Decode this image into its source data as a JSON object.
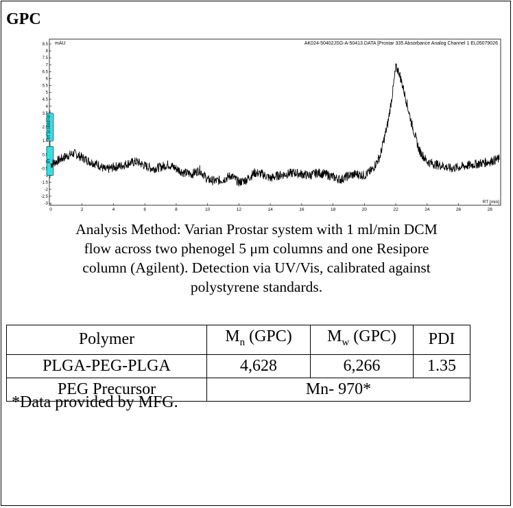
{
  "heading": "GPC",
  "chart_data": {
    "type": "line",
    "header_left": "mAU",
    "header_right": "AK024-50402JSG-A-50413.DATA [Prostar 335 Absorbance Analog Channel 1 EL05079026",
    "xlabel": "RT [min]",
    "xlim": [
      0,
      28.6
    ],
    "ylim": [
      -3,
      8.5
    ],
    "x_ticks": [
      "0",
      "2",
      "4",
      "6",
      "8",
      "10",
      "12",
      "14",
      "16",
      "18",
      "20",
      "22",
      "24",
      "26",
      "28"
    ],
    "y_ticks": [
      "-3",
      "-2.5",
      "-2",
      "-1.5",
      "-1",
      "-0.5",
      "0",
      "0.5",
      "1",
      "1.5",
      "2",
      "2.5",
      "3",
      "3.5",
      "4",
      "4.5",
      "5",
      "5.5",
      "6",
      "6.5",
      "7",
      "7.5",
      "8",
      "8.5"
    ],
    "y_tick_display": [
      "-3",
      "-2.5",
      "-2",
      "-1.5",
      "-1",
      "-0.5",
      "0",
      "0.5",
      "1",
      "1.5",
      "2",
      "2.5",
      "3",
      "3.5",
      "4",
      "4.5",
      "5",
      "5.5",
      "6",
      "6.5",
      "7",
      "7.5",
      "8",
      "8.5"
    ],
    "series": [
      {
        "color": "#000000",
        "points": [
          [
            0,
            -0.2
          ],
          [
            0.5,
            0.1
          ],
          [
            1,
            0.4
          ],
          [
            1.5,
            0.6
          ],
          [
            2,
            0.3
          ],
          [
            2.5,
            0.0
          ],
          [
            3,
            -0.2
          ],
          [
            3.5,
            -0.6
          ],
          [
            4,
            -0.4
          ],
          [
            4.5,
            -0.3
          ],
          [
            5,
            -0.1
          ],
          [
            5.5,
            0.0
          ],
          [
            6,
            -0.3
          ],
          [
            6.5,
            -0.5
          ],
          [
            7,
            -0.4
          ],
          [
            7.5,
            -0.2
          ],
          [
            8,
            -0.5
          ],
          [
            8.5,
            -0.8
          ],
          [
            9,
            -0.9
          ],
          [
            9.5,
            -0.6
          ],
          [
            10,
            -1.3
          ],
          [
            10.5,
            -1.4
          ],
          [
            11,
            -1.3
          ],
          [
            11.5,
            -1.0
          ],
          [
            12,
            -1.5
          ],
          [
            12.5,
            -1.3
          ],
          [
            13,
            -0.8
          ],
          [
            13.5,
            -0.9
          ],
          [
            14,
            -1.2
          ],
          [
            14.5,
            -1.0
          ],
          [
            15,
            -0.9
          ],
          [
            15.5,
            -0.8
          ],
          [
            16,
            -0.9
          ],
          [
            16.5,
            -1.0
          ],
          [
            17,
            -0.8
          ],
          [
            17.5,
            -0.9
          ],
          [
            18,
            -1.1
          ],
          [
            18.5,
            -1.3
          ],
          [
            19,
            -1.0
          ],
          [
            19.5,
            -0.9
          ],
          [
            20,
            -1.0
          ],
          [
            20.5,
            -0.6
          ],
          [
            21,
            0.4
          ],
          [
            21.5,
            2.8
          ],
          [
            21.8,
            5.0
          ],
          [
            22,
            6.8
          ],
          [
            22.2,
            6.5
          ],
          [
            22.5,
            5.2
          ],
          [
            23,
            2.8
          ],
          [
            23.5,
            0.8
          ],
          [
            24,
            0.0
          ],
          [
            24.5,
            -0.2
          ],
          [
            25,
            -0.3
          ],
          [
            25.5,
            -0.5
          ],
          [
            26,
            -0.4
          ],
          [
            26.5,
            -0.3
          ],
          [
            27,
            -0.2
          ],
          [
            27.5,
            -0.1
          ],
          [
            28,
            0.0
          ],
          [
            28.6,
            0.2
          ]
        ]
      }
    ],
    "markers": [
      {
        "name": "integration-marker-upper",
        "label": "RT 10.00000 00",
        "y_from": 1.5,
        "y_to": 3.5,
        "color": "#33dfe5"
      },
      {
        "name": "integration-marker-lower",
        "label": "RT",
        "y_from": -1.0,
        "y_to": 1.1,
        "color": "#33dfe5"
      }
    ]
  },
  "caption_lines": [
    "Analysis Method: Varian Prostar system with 1 ml/min DCM",
    "flow across two phenogel 5 μm columns and one Resipore",
    "column (Agilent). Detection via UV/Vis, calibrated against",
    "polystyrene standards."
  ],
  "table": {
    "header": {
      "polymer": "Polymer",
      "mn_main": "M",
      "mn_sub": "n",
      "mn_rest": " (GPC)",
      "mw_main": "M",
      "mw_sub": "w",
      "mw_rest": " (GPC)",
      "pdi": "PDI"
    },
    "rows": [
      {
        "polymer": "PLGA-PEG-PLGA",
        "mn": "4,628",
        "mw": "6,266",
        "pdi": "1.35"
      }
    ],
    "precursor": {
      "polymer": "PEG Precursor",
      "value": "Mn- 970*"
    }
  },
  "footnote": "*Data provided by MFG."
}
